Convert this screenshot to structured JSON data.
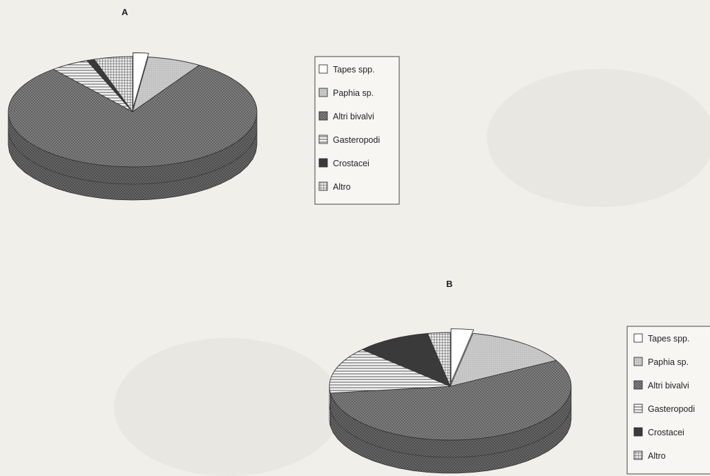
{
  "chart_data": [
    {
      "type": "pie",
      "panel": "A",
      "categories": [
        "Tapes spp.",
        "Paphia sp.",
        "Altri bivalvi",
        "Gasteropodi",
        "Crostacei",
        "Altro"
      ],
      "values": [
        2,
        7,
        80,
        5,
        1,
        5
      ],
      "exploded": [
        "Tapes spp."
      ],
      "legend": "right",
      "style": "3d"
    },
    {
      "type": "pie",
      "panel": "B",
      "categories": [
        "Tapes spp.",
        "Paphia sp.",
        "Altri bivalvi",
        "Gasteropodi",
        "Crostacei",
        "Altro"
      ],
      "values": [
        3,
        14,
        56,
        14,
        10,
        3
      ],
      "exploded": [
        "Tapes spp."
      ],
      "legend": "right",
      "style": "3d"
    }
  ],
  "colors": {
    "tapes": "#ffffff",
    "paphia": "#c9c9c9",
    "altri_bivalvi": "#7a7a7a",
    "gasteropodi": "#f2f2f2",
    "crostacei": "#3b3b3b",
    "altro": "#dcdcdc"
  },
  "icons": [
    "open-square-icon",
    "light-gray-square-icon",
    "crosshatch-square-icon",
    "horizontal-lines-square-icon",
    "dark-square-icon",
    "grid-square-icon"
  ]
}
